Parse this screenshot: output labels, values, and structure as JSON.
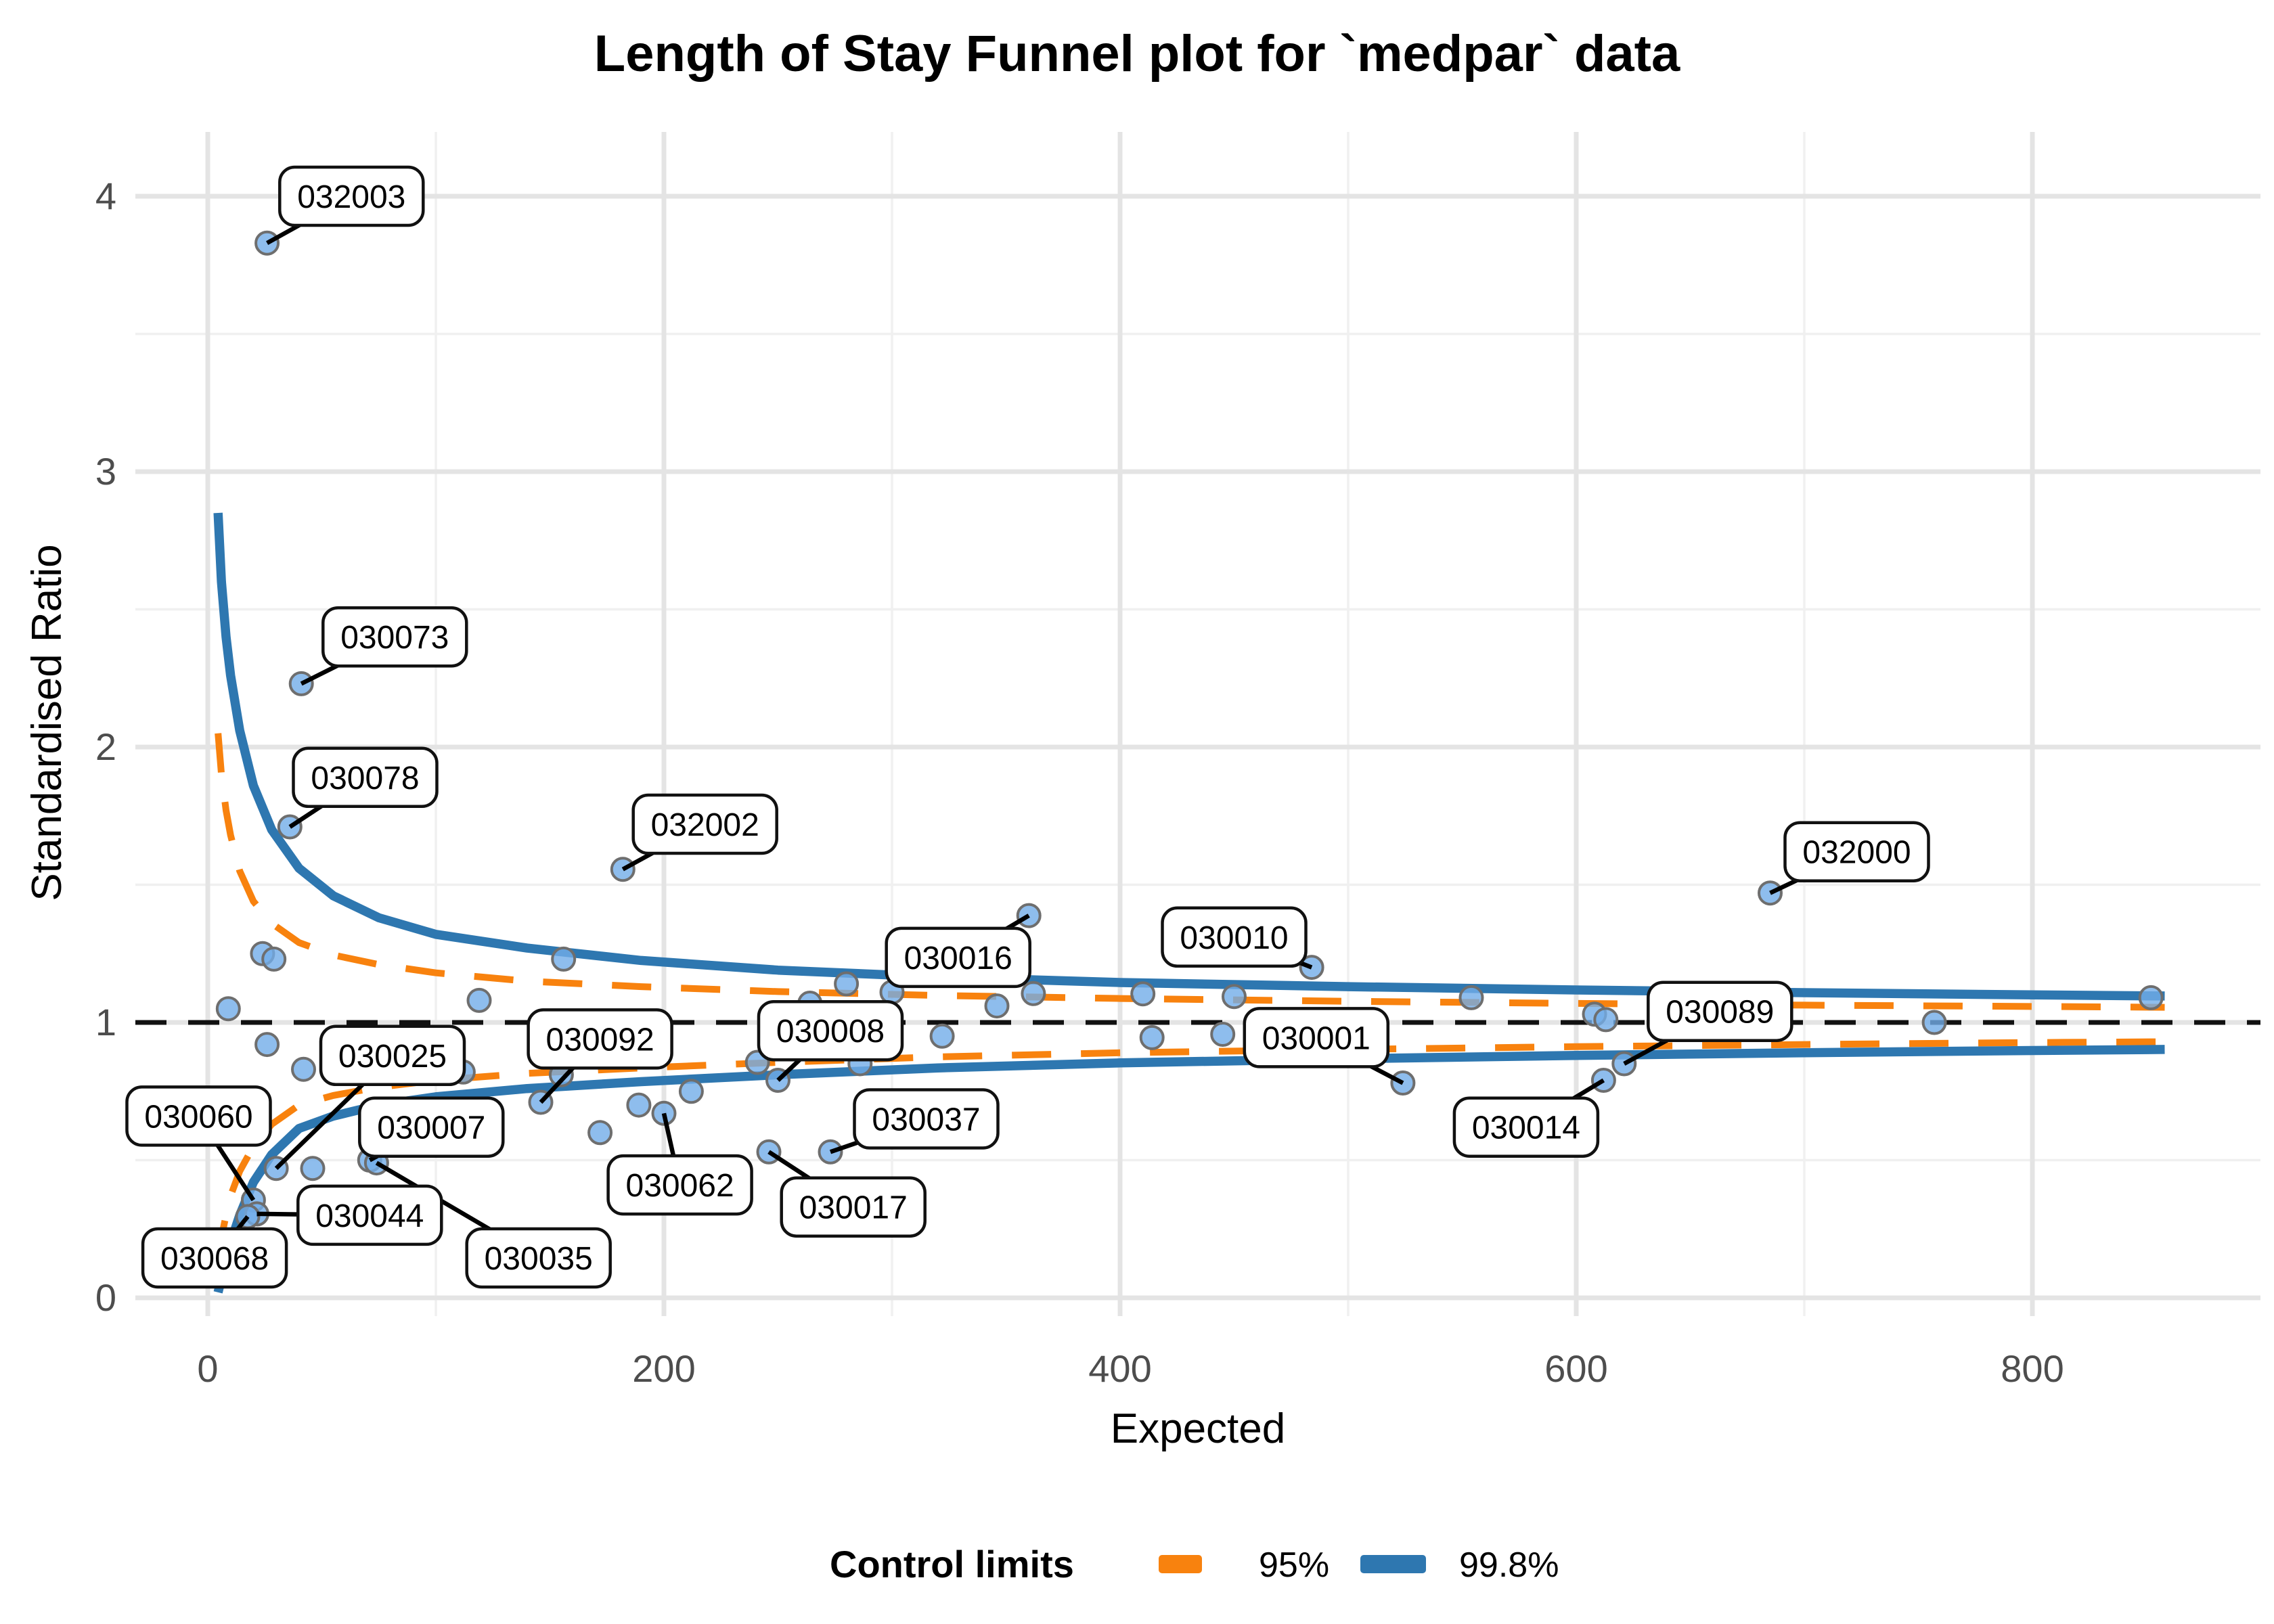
{
  "title": "Length of Stay Funnel plot for `medpar` data",
  "x_axis": {
    "label": "Expected",
    "ticks": [
      0,
      200,
      400,
      600,
      800
    ],
    "minor_ticks": [
      100,
      300,
      500,
      700
    ]
  },
  "y_axis": {
    "label": "Standardised Ratio",
    "ticks": [
      0,
      1,
      2,
      3,
      4
    ],
    "minor_ticks": [
      0.5,
      1.5,
      2.5,
      3.5
    ]
  },
  "reference_line": {
    "y": 1,
    "style": "dashed",
    "color": "#111111"
  },
  "legend": {
    "title": "Control limits",
    "items": [
      {
        "label": "95%",
        "color": "#F8820E",
        "dashed": true
      },
      {
        "label": "99.8%",
        "color": "#2E77B0",
        "dashed": false
      }
    ]
  },
  "colors": {
    "background": "#FFFFFF",
    "grid_major": "#E4E4E4",
    "grid_minor": "#F0F0F0",
    "point_fill": "#72ACE8",
    "point_stroke": "#6E6E6E",
    "limit_95": "#F8820E",
    "limit_998": "#2E77B0",
    "callout_border": "#111111",
    "callout_fill": "#FFFFFF",
    "tick_text": "#4D4D4D",
    "segment": "#000000"
  },
  "chart_data": {
    "type": "scatter",
    "title": "Length of Stay Funnel plot for `medpar` data",
    "xlabel": "Expected",
    "ylabel": "Standardised Ratio",
    "xlim": [
      0,
      870
    ],
    "ylim": [
      0,
      4.3
    ],
    "grid": true,
    "legend_position": "bottom",
    "points": [
      {
        "e": 26,
        "sr": 3.83,
        "label": "032003",
        "lx": 63,
        "ly": 4.0
      },
      {
        "e": 41,
        "sr": 2.23,
        "label": "030073",
        "lx": 82,
        "ly": 2.4
      },
      {
        "e": 36,
        "sr": 1.71,
        "label": "030078",
        "lx": 69,
        "ly": 1.89
      },
      {
        "e": 182,
        "sr": 1.556,
        "label": "032002",
        "lx": 218,
        "ly": 1.72
      },
      {
        "e": 360,
        "sr": 1.388,
        "label": "030016",
        "lx": 329,
        "ly": 1.236
      },
      {
        "e": 484,
        "sr": 1.2,
        "label": "030010",
        "lx": 450,
        "ly": 1.31
      },
      {
        "e": 685,
        "sr": 1.47,
        "label": "032000",
        "lx": 723,
        "ly": 1.62
      },
      {
        "e": 146,
        "sr": 0.71,
        "label": "030092",
        "lx": 172,
        "ly": 0.94
      },
      {
        "e": 250,
        "sr": 0.79,
        "label": "030008",
        "lx": 273,
        "ly": 0.97
      },
      {
        "e": 30,
        "sr": 0.47,
        "label": "030025",
        "lx": 81,
        "ly": 0.88
      },
      {
        "e": 20,
        "sr": 0.355,
        "label": "030060",
        "lx": -4,
        "ly": 0.66
      },
      {
        "e": 71,
        "sr": 0.5,
        "label": "030007",
        "lx": 98,
        "ly": 0.62
      },
      {
        "e": 21.5,
        "sr": 0.305,
        "label": "030044",
        "lx": 71,
        "ly": 0.3
      },
      {
        "e": 74,
        "sr": 0.49,
        "label": "030035",
        "lx": 145,
        "ly": 0.145
      },
      {
        "e": 17.5,
        "sr": 0.295,
        "label": "030068",
        "lx": 3,
        "ly": 0.145
      },
      {
        "e": 200,
        "sr": 0.67,
        "label": "030062",
        "lx": 207,
        "ly": 0.41
      },
      {
        "e": 246,
        "sr": 0.53,
        "label": "030017",
        "lx": 283,
        "ly": 0.33
      },
      {
        "e": 273,
        "sr": 0.53,
        "label": "030037",
        "lx": 315,
        "ly": 0.65
      },
      {
        "e": 524,
        "sr": 0.78,
        "label": "030001",
        "lx": 486,
        "ly": 0.945
      },
      {
        "e": 621,
        "sr": 0.85,
        "label": "030089",
        "lx": 663,
        "ly": 1.04
      },
      {
        "e": 612,
        "sr": 0.79,
        "label": "030014",
        "lx": 578,
        "ly": 0.62
      },
      {
        "e": 9,
        "sr": 1.05
      },
      {
        "e": 24,
        "sr": 1.25
      },
      {
        "e": 29,
        "sr": 1.23
      },
      {
        "e": 26,
        "sr": 0.92
      },
      {
        "e": 42,
        "sr": 0.83
      },
      {
        "e": 46,
        "sr": 0.47
      },
      {
        "e": 112,
        "sr": 0.82
      },
      {
        "e": 119,
        "sr": 1.08
      },
      {
        "e": 155,
        "sr": 0.81
      },
      {
        "e": 156,
        "sr": 1.23
      },
      {
        "e": 172,
        "sr": 0.6
      },
      {
        "e": 189,
        "sr": 0.7
      },
      {
        "e": 212,
        "sr": 0.75
      },
      {
        "e": 241,
        "sr": 0.855
      },
      {
        "e": 264,
        "sr": 1.07
      },
      {
        "e": 280,
        "sr": 1.14
      },
      {
        "e": 286,
        "sr": 0.85
      },
      {
        "e": 300,
        "sr": 1.11
      },
      {
        "e": 322,
        "sr": 0.95
      },
      {
        "e": 346,
        "sr": 1.06
      },
      {
        "e": 362,
        "sr": 1.105
      },
      {
        "e": 410,
        "sr": 1.104
      },
      {
        "e": 414,
        "sr": 0.945
      },
      {
        "e": 445,
        "sr": 0.957
      },
      {
        "e": 450,
        "sr": 1.094
      },
      {
        "e": 554,
        "sr": 1.09
      },
      {
        "e": 608,
        "sr": 1.03
      },
      {
        "e": 613,
        "sr": 1.01
      },
      {
        "e": 757,
        "sr": 1.0
      },
      {
        "e": 852,
        "sr": 1.09
      }
    ],
    "limits": {
      "e": [
        4.5,
        6,
        8,
        10,
        14,
        20,
        28,
        40,
        55,
        75,
        100,
        140,
        190,
        250,
        320,
        400,
        500,
        600,
        700,
        800,
        858
      ],
      "upper_998": [
        2.85,
        2.6,
        2.4,
        2.26,
        2.06,
        1.86,
        1.7,
        1.56,
        1.46,
        1.38,
        1.32,
        1.27,
        1.225,
        1.19,
        1.165,
        1.145,
        1.13,
        1.118,
        1.108,
        1.1,
        1.096
      ],
      "lower_998": [
        0.02,
        0.07,
        0.14,
        0.2,
        0.3,
        0.42,
        0.52,
        0.615,
        0.66,
        0.7,
        0.73,
        0.76,
        0.785,
        0.81,
        0.835,
        0.853,
        0.868,
        0.88,
        0.89,
        0.898,
        0.902
      ],
      "upper_95": [
        2.05,
        1.9,
        1.77,
        1.68,
        1.55,
        1.44,
        1.36,
        1.29,
        1.245,
        1.21,
        1.18,
        1.15,
        1.13,
        1.112,
        1.098,
        1.087,
        1.077,
        1.069,
        1.063,
        1.058,
        1.055
      ],
      "lower_95": [
        0.14,
        0.22,
        0.3,
        0.37,
        0.46,
        0.55,
        0.63,
        0.7,
        0.735,
        0.765,
        0.79,
        0.815,
        0.835,
        0.855,
        0.875,
        0.89,
        0.902,
        0.912,
        0.92,
        0.927,
        0.93
      ]
    }
  }
}
